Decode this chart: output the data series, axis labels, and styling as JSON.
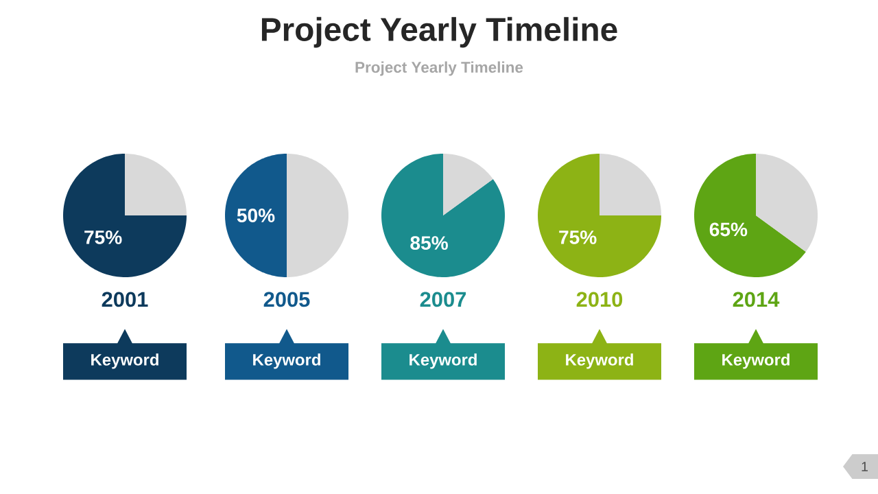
{
  "chart_data": [
    {
      "type": "pie",
      "categories": [
        null,
        null
      ],
      "values": [
        75,
        25
      ],
      "colors": [
        "#0d3a5c",
        "#d9d9d9"
      ],
      "value_labels": [
        "75%",
        null
      ],
      "xlabel": "2001",
      "annotations": [
        "Keyword"
      ]
    },
    {
      "type": "pie",
      "categories": [
        null,
        null
      ],
      "values": [
        50,
        50
      ],
      "colors": [
        "#11598c",
        "#d9d9d9"
      ],
      "value_labels": [
        "50%",
        null
      ],
      "xlabel": "2005",
      "annotations": [
        "Keyword"
      ]
    },
    {
      "type": "pie",
      "title": "Project Yearly Timeline",
      "subtitle": "Project Yearly Timeline",
      "categories": [
        null,
        null
      ],
      "values": [
        85,
        15
      ],
      "colors": [
        "#1b8c8e",
        "#d9d9d9"
      ],
      "value_labels": [
        "85%",
        null
      ],
      "xlabel": "2007",
      "annotations": [
        "Keyword"
      ]
    },
    {
      "type": "pie",
      "categories": [
        null,
        null
      ],
      "values": [
        75,
        25
      ],
      "colors": [
        "#8db315",
        "#d9d9d9"
      ],
      "value_labels": [
        "75%",
        null
      ],
      "xlabel": "2010",
      "annotations": [
        "Keyword"
      ]
    },
    {
      "type": "pie",
      "categories": [
        null,
        null
      ],
      "values": [
        65,
        35
      ],
      "colors": [
        "#5ea514",
        "#d9d9d9"
      ],
      "value_labels": [
        "65%",
        null
      ],
      "xlabel": "2014",
      "annotations": [
        "Keyword",
        "1"
      ]
    }
  ]
}
